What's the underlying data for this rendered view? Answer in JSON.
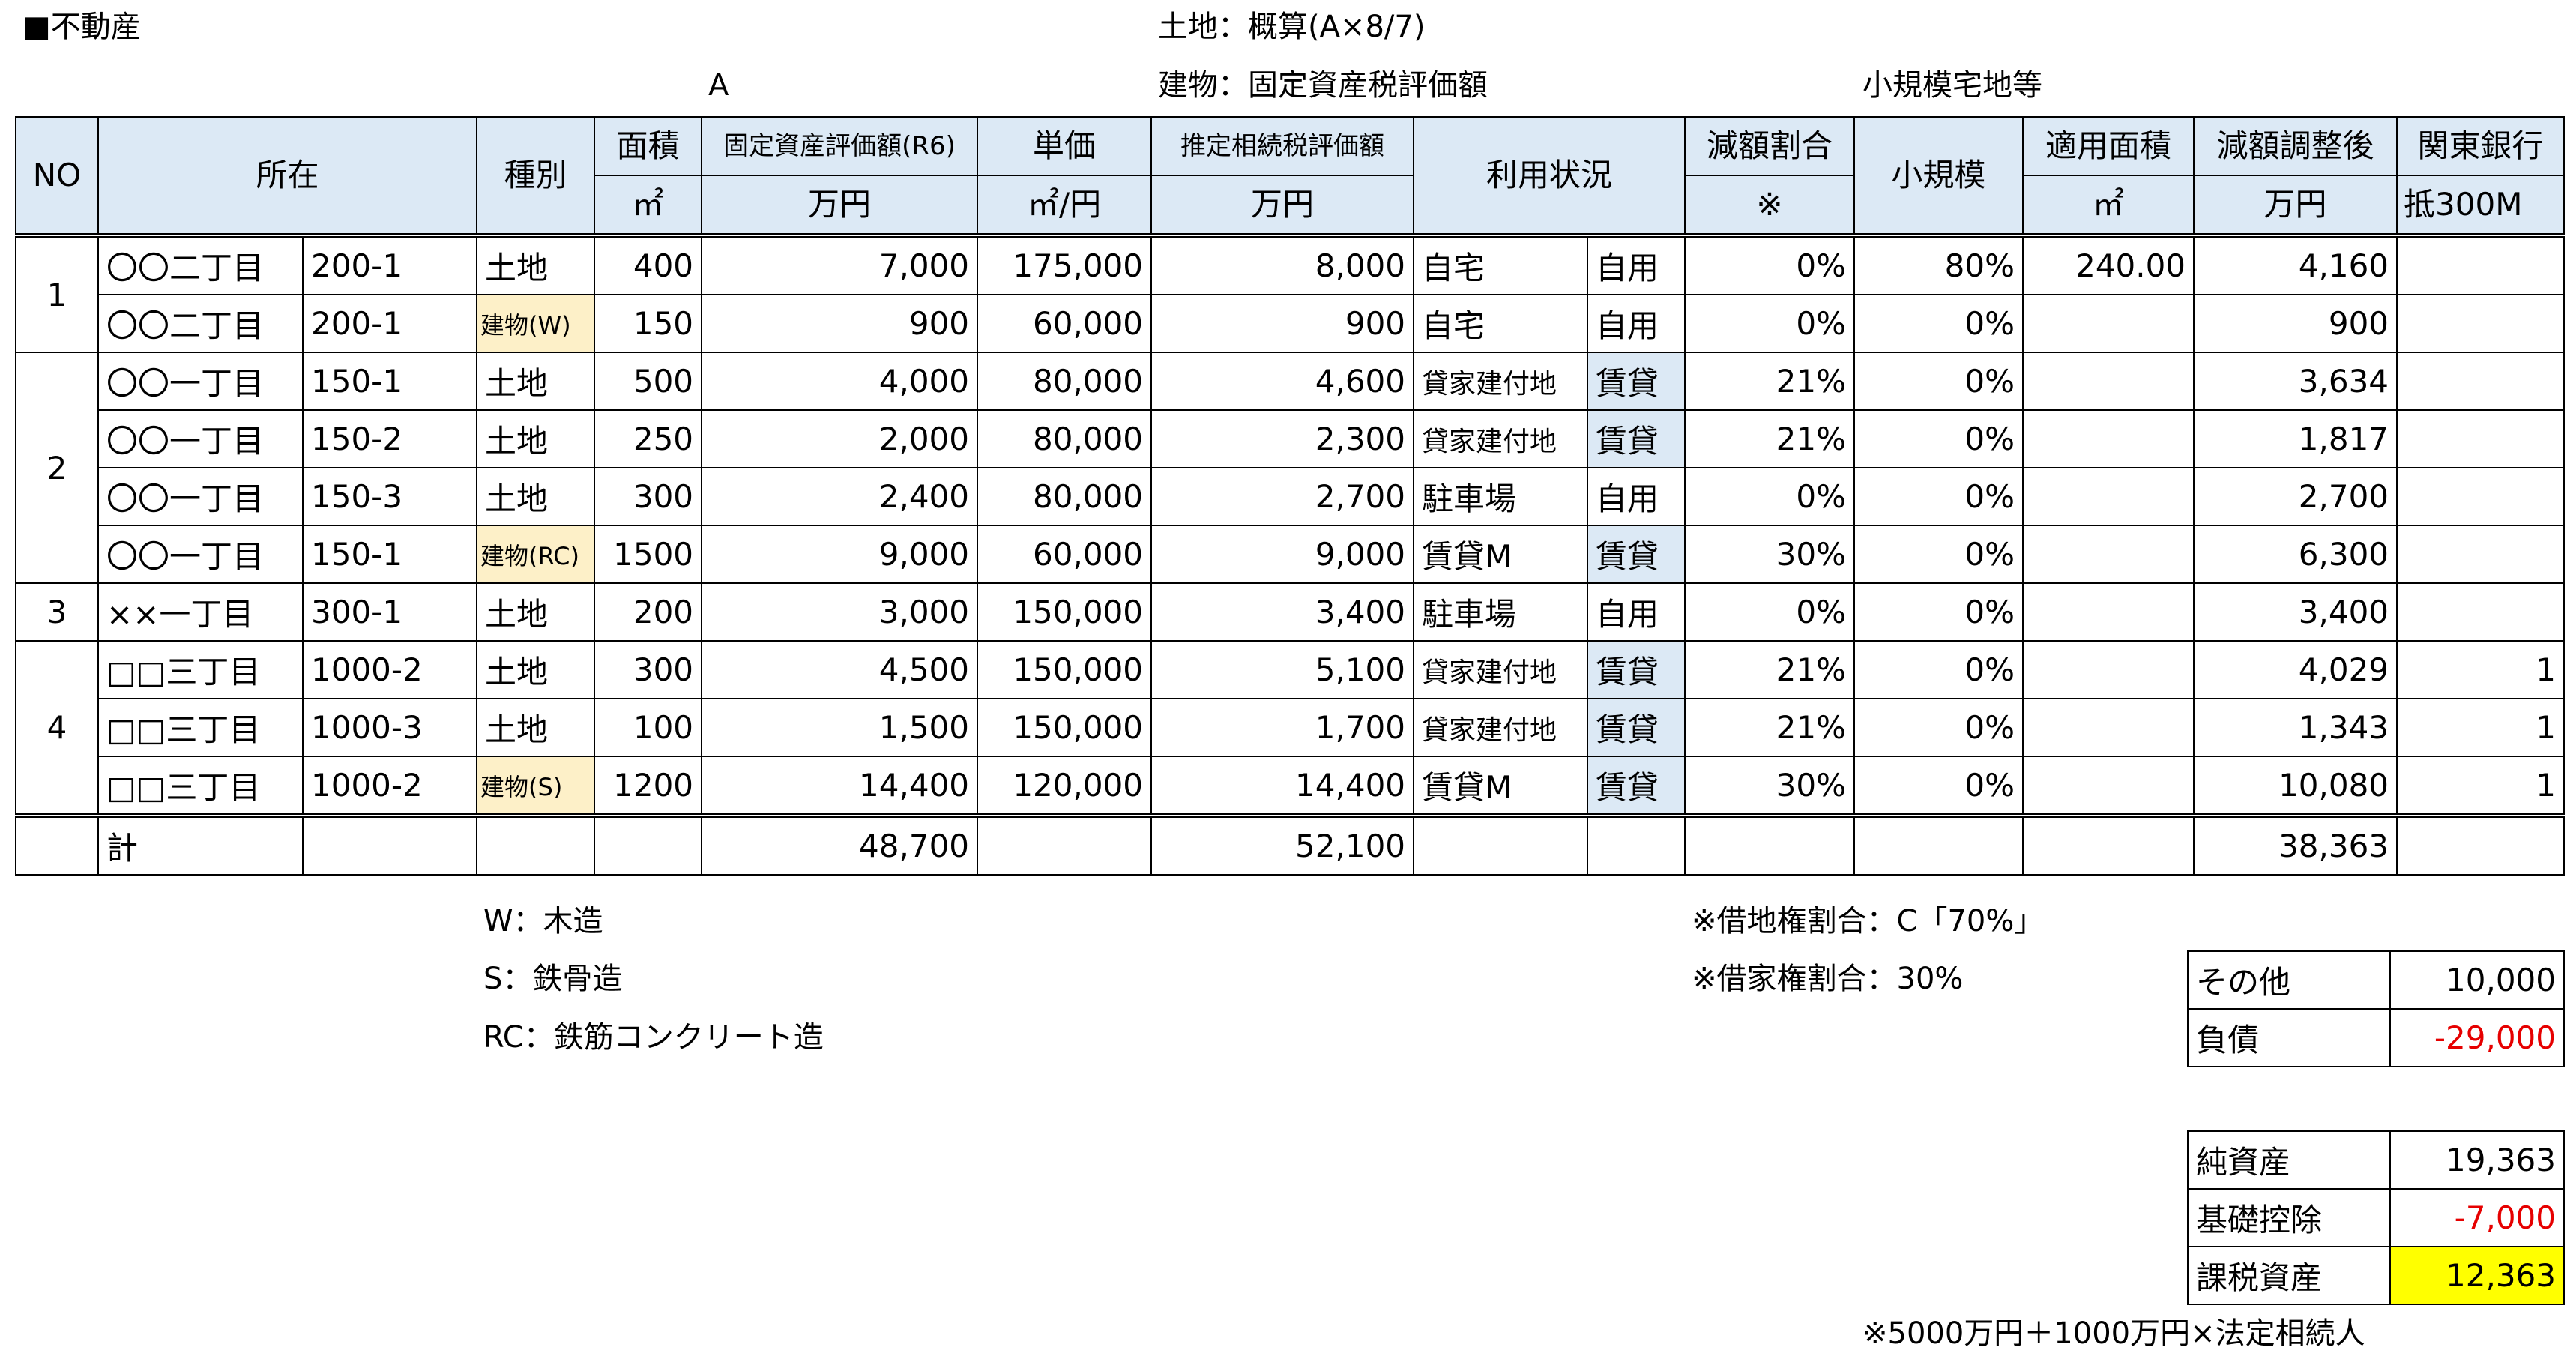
{
  "top": {
    "section_title": "■不動産",
    "land_note": "土地：概算(A×8/7)",
    "building_note": "建物：固定資産税評価額",
    "small_scale_note": "小規模宅地等",
    "col_a_marker": "A"
  },
  "header": {
    "no": "NO",
    "location": "所在",
    "type": "種別",
    "area": "面積",
    "area_unit": "㎡",
    "fixed_value": "固定資産評価額(R6)",
    "fixed_value_unit": "万円",
    "unit_price": "単価",
    "unit_price_unit": "㎡/円",
    "est_value": "推定相続税評価額",
    "est_value_unit": "万円",
    "usage": "利用状況",
    "reduction_rate": "減額割合",
    "reduction_rate_note": "※",
    "small_scale": "小規模",
    "applied_area": "適用面積",
    "applied_area_unit": "㎡",
    "adjusted": "減額調整後",
    "adjusted_unit": "万円",
    "bank": "関東銀行",
    "bank_sub": "抵300M"
  },
  "rows": [
    {
      "no": "1",
      "loc": "〇〇二丁目",
      "lot": "200-1",
      "type": "土地",
      "area": "400",
      "fixed": "7,000",
      "unit": "175,000",
      "est": "8,000",
      "use": "自宅",
      "use2": "自用",
      "rate": "0%",
      "small": "80%",
      "applied": "240.00",
      "adjusted": "4,160",
      "bank": ""
    },
    {
      "no": "",
      "loc": "〇〇二丁目",
      "lot": "200-1",
      "type": "建物(W)",
      "area": "150",
      "fixed": "900",
      "unit": "60,000",
      "est": "900",
      "use": "自宅",
      "use2": "自用",
      "rate": "0%",
      "small": "0%",
      "applied": "",
      "adjusted": "900",
      "bank": ""
    },
    {
      "no": "2",
      "loc": "〇〇一丁目",
      "lot": "150-1",
      "type": "土地",
      "area": "500",
      "fixed": "4,000",
      "unit": "80,000",
      "est": "4,600",
      "use": "貸家建付地",
      "use2": "賃貸",
      "rate": "21%",
      "small": "0%",
      "applied": "",
      "adjusted": "3,634",
      "bank": ""
    },
    {
      "no": "",
      "loc": "〇〇一丁目",
      "lot": "150-2",
      "type": "土地",
      "area": "250",
      "fixed": "2,000",
      "unit": "80,000",
      "est": "2,300",
      "use": "貸家建付地",
      "use2": "賃貸",
      "rate": "21%",
      "small": "0%",
      "applied": "",
      "adjusted": "1,817",
      "bank": ""
    },
    {
      "no": "",
      "loc": "〇〇一丁目",
      "lot": "150-3",
      "type": "土地",
      "area": "300",
      "fixed": "2,400",
      "unit": "80,000",
      "est": "2,700",
      "use": "駐車場",
      "use2": "自用",
      "rate": "0%",
      "small": "0%",
      "applied": "",
      "adjusted": "2,700",
      "bank": ""
    },
    {
      "no": "",
      "loc": "〇〇一丁目",
      "lot": "150-1",
      "type": "建物(RC)",
      "area": "1500",
      "fixed": "9,000",
      "unit": "60,000",
      "est": "9,000",
      "use": "賃貸M",
      "use2": "賃貸",
      "rate": "30%",
      "small": "0%",
      "applied": "",
      "adjusted": "6,300",
      "bank": ""
    },
    {
      "no": "3",
      "loc": "××一丁目",
      "lot": "300-1",
      "type": "土地",
      "area": "200",
      "fixed": "3,000",
      "unit": "150,000",
      "est": "3,400",
      "use": "駐車場",
      "use2": "自用",
      "rate": "0%",
      "small": "0%",
      "applied": "",
      "adjusted": "3,400",
      "bank": ""
    },
    {
      "no": "4",
      "loc": "□□三丁目",
      "lot": "1000-2",
      "type": "土地",
      "area": "300",
      "fixed": "4,500",
      "unit": "150,000",
      "est": "5,100",
      "use": "貸家建付地",
      "use2": "賃貸",
      "rate": "21%",
      "small": "0%",
      "applied": "",
      "adjusted": "4,029",
      "bank": "1"
    },
    {
      "no": "",
      "loc": "□□三丁目",
      "lot": "1000-3",
      "type": "土地",
      "area": "100",
      "fixed": "1,500",
      "unit": "150,000",
      "est": "1,700",
      "use": "貸家建付地",
      "use2": "賃貸",
      "rate": "21%",
      "small": "0%",
      "applied": "",
      "adjusted": "1,343",
      "bank": "1"
    },
    {
      "no": "",
      "loc": "□□三丁目",
      "lot": "1000-2",
      "type": "建物(S)",
      "area": "1200",
      "fixed": "14,400",
      "unit": "120,000",
      "est": "14,400",
      "use": "賃貸M",
      "use2": "賃貸",
      "rate": "30%",
      "small": "0%",
      "applied": "",
      "adjusted": "10,080",
      "bank": "1"
    }
  ],
  "total": {
    "label": "計",
    "fixed": "48,700",
    "est": "52,100",
    "adjusted": "38,363"
  },
  "notes": {
    "w": "W：木造",
    "s": "S：鉄骨造",
    "rc": "RC：鉄筋コンクリート造",
    "leasehold": "※借地権割合：C「70%」",
    "tenancy": "※借家権割合：30%",
    "basic_note": "※5000万円＋1000万円×法定相続人"
  },
  "other": {
    "label": "その他",
    "value": "10,000",
    "debt_label": "負債",
    "debt_value": "-29,000"
  },
  "summary": {
    "net_label": "純資産",
    "net_value": "19,363",
    "basic_label": "基礎控除",
    "basic_value": "-7,000",
    "taxable_label": "課税資産",
    "taxable_value": "12,363"
  },
  "colors": {
    "header_bg": "#dce9f5",
    "building_tag_bg": "#fdf0c8",
    "negative": "#e60000",
    "highlight": "#ffff00"
  }
}
